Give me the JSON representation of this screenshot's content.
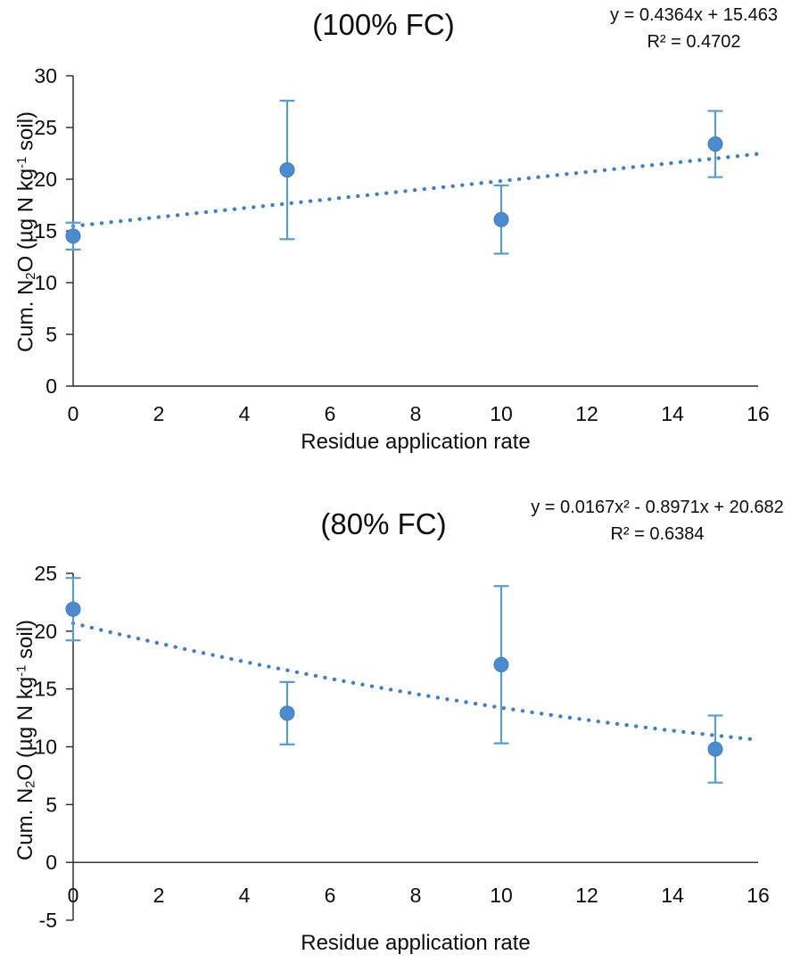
{
  "figure": {
    "background": "#ffffff",
    "text_color": "#0d0d0d",
    "axis_color": "#262626"
  },
  "chart_data": [
    {
      "type": "scatter",
      "panel": "top",
      "title": "(100% FC)",
      "equation": "y = 0.4364x + 15.463",
      "r_squared": "R² = 0.4702",
      "xlabel": "Residue application rate",
      "ylabel": "Cum. N2O (µg N kg-1 soil)",
      "ylabel_parts": {
        "prefix": "Cum. N",
        "subscript": "2",
        "middle": "O (µg N kg",
        "superscript": "-1",
        "suffix": " soil)"
      },
      "x": [
        0,
        5,
        10,
        15
      ],
      "y": [
        14.5,
        20.9,
        16.1,
        23.4
      ],
      "y_err": [
        1.3,
        6.7,
        3.3,
        3.2
      ],
      "trendline": {
        "style": "dotted",
        "shape": "linear",
        "coefficients": [
          0.4364,
          15.463
        ]
      },
      "xlim": [
        0,
        16
      ],
      "ylim": [
        0,
        30
      ],
      "xticks": [
        0,
        2,
        4,
        6,
        8,
        10,
        12,
        14,
        16
      ],
      "yticks": [
        0,
        5,
        10,
        15,
        20,
        25,
        30
      ],
      "grid": false,
      "legend": null,
      "marker_color": "#4e8bcd",
      "marker_edge_color": "#3d7ec2",
      "error_color": "#5b9bd5",
      "trend_color": "#3f7ec5"
    },
    {
      "type": "scatter",
      "panel": "bottom",
      "title": "(80% FC)",
      "equation": "y = 0.0167x² - 0.8971x + 20.682",
      "r_squared": "R² = 0.6384",
      "xlabel": "Residue application rate",
      "ylabel": "Cum. N2O (µg N kg-1 soil)",
      "ylabel_parts": {
        "prefix": "Cum. N",
        "subscript": "2",
        "middle": "O (µg N kg",
        "superscript": "-1",
        "suffix": " soil)"
      },
      "x": [
        0,
        5,
        10,
        15
      ],
      "y": [
        21.9,
        12.9,
        17.1,
        9.8
      ],
      "y_err": [
        2.7,
        2.7,
        6.8,
        2.9
      ],
      "trendline": {
        "style": "dotted",
        "shape": "poly2",
        "coefficients": [
          0.0167,
          -0.8971,
          20.682
        ]
      },
      "xlim": [
        0,
        16
      ],
      "ylim": [
        -5,
        25
      ],
      "xticks": [
        0,
        2,
        4,
        6,
        8,
        10,
        12,
        14,
        16
      ],
      "yticks": [
        -5,
        0,
        5,
        10,
        15,
        20,
        25
      ],
      "grid": false,
      "legend": null,
      "marker_color": "#4e8bcd",
      "marker_edge_color": "#3d7ec2",
      "error_color": "#5b9bd5",
      "trend_color": "#3f7ec5"
    }
  ]
}
